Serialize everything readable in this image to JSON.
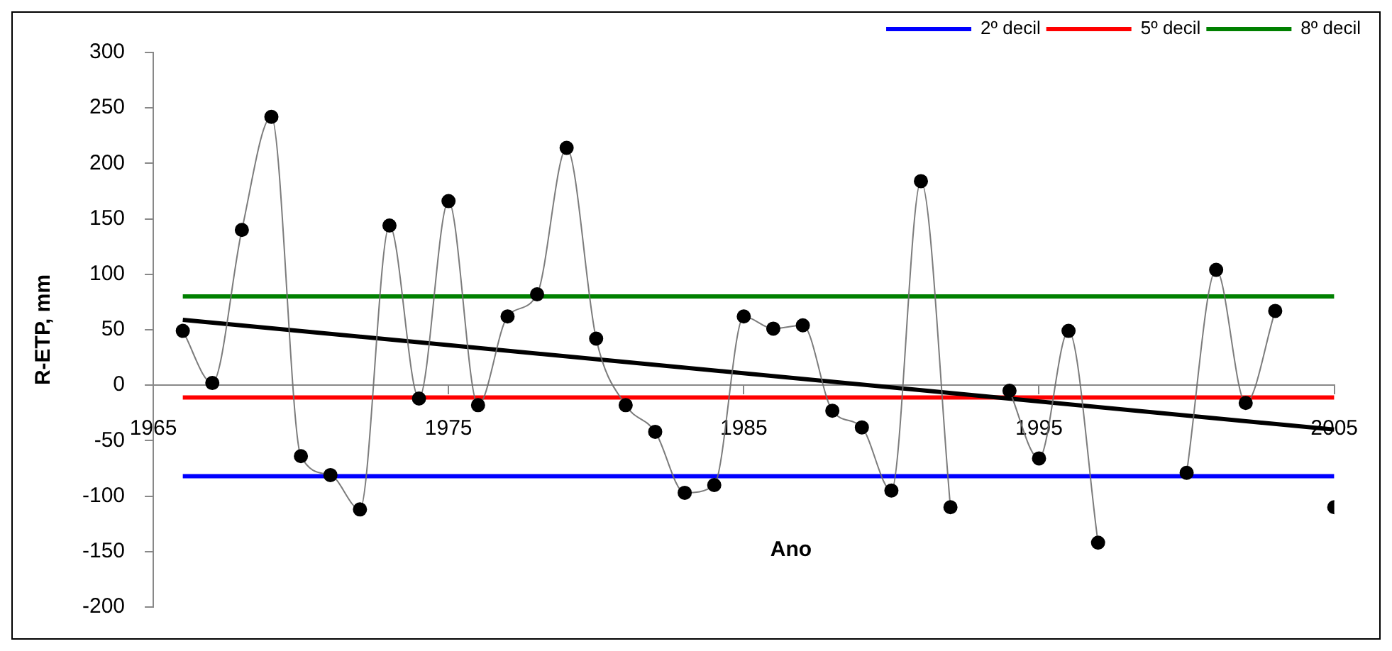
{
  "chart_data": {
    "type": "line",
    "xlabel": "Ano",
    "ylabel": "R-ETP, mm",
    "x": [
      1966,
      1967,
      1968,
      1969,
      1970,
      1971,
      1972,
      1973,
      1974,
      1975,
      1976,
      1977,
      1978,
      1979,
      1980,
      1981,
      1982,
      1983,
      1984,
      1985,
      1986,
      1987,
      1988,
      1989,
      1990,
      1991,
      1992,
      1993,
      1994,
      1995,
      1996,
      1997,
      1998,
      1999,
      2000,
      2001,
      2002,
      2003,
      2004,
      2005
    ],
    "series": [
      {
        "color": "#000000",
        "marker": "circle",
        "values": [
          49,
          2,
          140,
          242,
          -64,
          -81,
          -112,
          144,
          -12,
          166,
          -18,
          62,
          82,
          214,
          42,
          -18,
          -42,
          -97,
          -90,
          62,
          51,
          54,
          -23,
          -38,
          -95,
          184,
          -110,
          null,
          -5,
          -66,
          49,
          -142,
          null,
          null,
          -79,
          104,
          -16,
          67,
          null,
          -110
        ]
      },
      {
        "type": "line",
        "color": "#000000",
        "marker": "none",
        "x": [
          1966,
          2005
        ],
        "values": [
          59,
          -40
        ]
      },
      {
        "type": "line",
        "name": "2º decil",
        "color": "#0000ff",
        "marker": "none",
        "values": [
          -82,
          -82,
          -82,
          -82,
          -82,
          -82,
          -82,
          -82,
          -82,
          -82,
          -82,
          -82,
          -82,
          -82,
          -82,
          -82,
          -82,
          -82,
          -82,
          -82,
          -82,
          -82,
          -82,
          -82,
          -82,
          -82,
          -82,
          -82,
          -82,
          -82,
          -82,
          -82,
          -82,
          -82,
          -82,
          -82,
          -82,
          -82,
          -82,
          -82
        ]
      },
      {
        "type": "line",
        "name": "5º decil",
        "color": "#ff0000",
        "marker": "none",
        "values": [
          -11,
          -11,
          -11,
          -11,
          -11,
          -11,
          -11,
          -11,
          -11,
          -11,
          -11,
          -11,
          -11,
          -11,
          -11,
          -11,
          -11,
          -11,
          -11,
          -11,
          -11,
          -11,
          -11,
          -11,
          -11,
          -11,
          -11,
          -11,
          -11,
          -11,
          -11,
          -11,
          -11,
          -11,
          -11,
          -11,
          -11,
          -11,
          -11,
          -11
        ]
      },
      {
        "type": "line",
        "name": "8º decil",
        "color": "#008000",
        "marker": "none",
        "values": [
          80,
          80,
          80,
          80,
          80,
          80,
          80,
          80,
          80,
          80,
          80,
          80,
          80,
          80,
          80,
          80,
          80,
          80,
          80,
          80,
          80,
          80,
          80,
          80,
          80,
          80,
          80,
          80,
          80,
          80,
          80,
          80,
          80,
          80,
          80,
          80,
          80,
          80,
          80,
          80
        ]
      }
    ],
    "xlim": [
      1965,
      2005
    ],
    "xticks": [
      1965,
      1975,
      1985,
      1995,
      2005
    ],
    "ylim": [
      -200,
      300
    ],
    "yticks": [
      -200,
      -150,
      -100,
      -50,
      0,
      50,
      100,
      150,
      200,
      250,
      300
    ],
    "grid": false,
    "legend": "top right",
    "line_style": "solid"
  }
}
